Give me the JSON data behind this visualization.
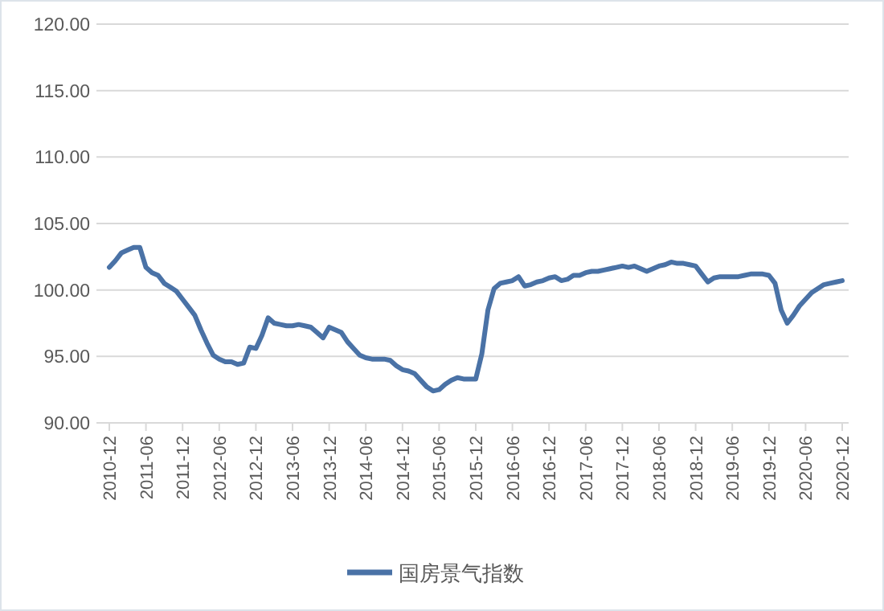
{
  "chart_data": {
    "type": "line",
    "categories": [
      "2010-12",
      null,
      null,
      null,
      null,
      null,
      "2011-06",
      null,
      null,
      null,
      null,
      null,
      "2011-12",
      null,
      null,
      null,
      null,
      null,
      "2012-06",
      null,
      null,
      null,
      null,
      null,
      "2012-12",
      null,
      null,
      null,
      null,
      null,
      "2013-06",
      null,
      null,
      null,
      null,
      null,
      "2013-12",
      null,
      null,
      null,
      null,
      null,
      "2014-06",
      null,
      null,
      null,
      null,
      null,
      "2014-12",
      null,
      null,
      null,
      null,
      null,
      "2015-06",
      null,
      null,
      null,
      null,
      null,
      "2015-12",
      null,
      null,
      null,
      null,
      null,
      "2016-06",
      null,
      null,
      null,
      null,
      null,
      "2016-12",
      null,
      null,
      null,
      null,
      null,
      "2017-06",
      null,
      null,
      null,
      null,
      null,
      "2017-12",
      null,
      null,
      null,
      null,
      null,
      "2018-06",
      null,
      null,
      null,
      null,
      null,
      "2018-12",
      null,
      null,
      null,
      null,
      null,
      "2019-06",
      null,
      null,
      null,
      null,
      null,
      "2019-12",
      null,
      null,
      null,
      null,
      null,
      "2020-06",
      null,
      null,
      null,
      null,
      null,
      "2020-12"
    ],
    "series": [
      {
        "name": "国房景气指数",
        "color": "#4a72a6",
        "values": [
          101.7,
          102.2,
          102.8,
          103.0,
          103.2,
          103.2,
          101.7,
          101.3,
          101.1,
          100.5,
          100.2,
          99.9,
          99.3,
          98.7,
          98.1,
          97.0,
          96.0,
          95.1,
          94.8,
          94.6,
          94.6,
          94.4,
          94.5,
          95.7,
          95.6,
          96.6,
          97.9,
          97.5,
          97.4,
          97.3,
          97.3,
          97.4,
          97.3,
          97.2,
          96.8,
          96.4,
          97.2,
          97.0,
          96.8,
          96.1,
          95.6,
          95.1,
          94.9,
          94.8,
          94.8,
          94.8,
          94.7,
          94.3,
          94.0,
          93.9,
          93.7,
          93.2,
          92.7,
          92.4,
          92.5,
          92.9,
          93.2,
          93.4,
          93.3,
          93.3,
          93.3,
          95.2,
          98.5,
          100.1,
          100.5,
          100.6,
          100.7,
          101.0,
          100.3,
          100.4,
          100.6,
          100.7,
          100.9,
          101.0,
          100.7,
          100.8,
          101.1,
          101.1,
          101.3,
          101.4,
          101.4,
          101.5,
          101.6,
          101.7,
          101.8,
          101.7,
          101.8,
          101.6,
          101.4,
          101.6,
          101.8,
          101.9,
          102.1,
          102.0,
          102.0,
          101.9,
          101.8,
          101.2,
          100.6,
          100.9,
          101.0,
          101.0,
          101.0,
          101.0,
          101.1,
          101.2,
          101.2,
          101.2,
          101.1,
          100.5,
          98.5,
          97.5,
          98.1,
          98.8,
          99.3,
          99.8,
          100.1,
          100.4,
          100.5,
          100.6,
          100.7
        ]
      }
    ],
    "ylim": [
      90,
      120
    ],
    "yticks": [
      {
        "value": 90,
        "label": "90.00"
      },
      {
        "value": 95,
        "label": "95.00"
      },
      {
        "value": 100,
        "label": "100.00"
      },
      {
        "value": 105,
        "label": "105.00"
      },
      {
        "value": 110,
        "label": "110.00"
      },
      {
        "value": 115,
        "label": "115.00"
      },
      {
        "value": 120,
        "label": "120.00"
      }
    ],
    "grid": "y",
    "legend": "bottom",
    "marker": "none",
    "line_style": "solid"
  }
}
